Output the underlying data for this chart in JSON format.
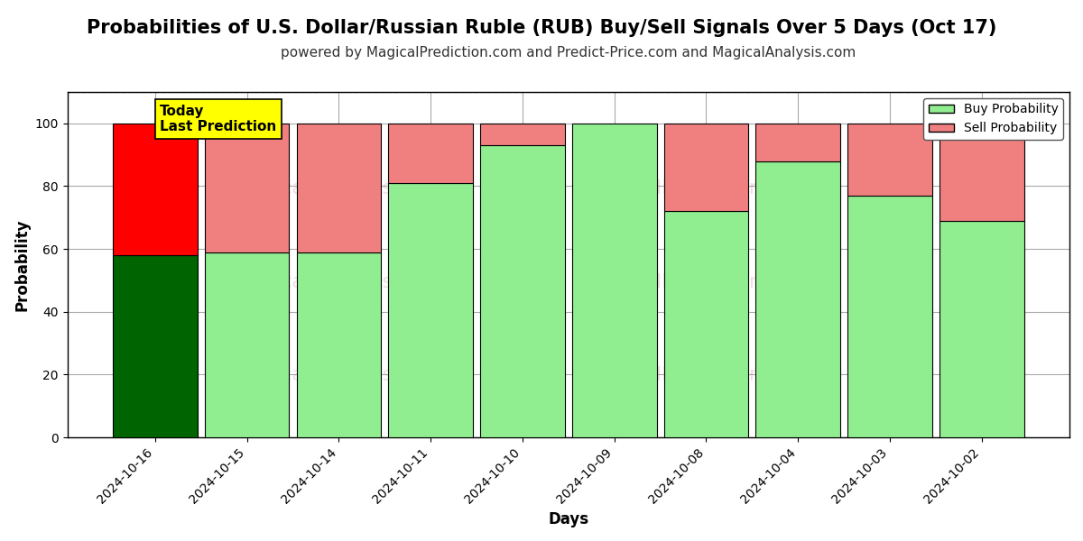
{
  "title": "Probabilities of U.S. Dollar/Russian Ruble (RUB) Buy/Sell Signals Over 5 Days (Oct 17)",
  "subtitle": "powered by MagicalPrediction.com and Predict-Price.com and MagicalAnalysis.com",
  "xlabel": "Days",
  "ylabel": "Probability",
  "categories": [
    "2024-10-16",
    "2024-10-15",
    "2024-10-14",
    "2024-10-11",
    "2024-10-10",
    "2024-10-09",
    "2024-10-08",
    "2024-10-04",
    "2024-10-03",
    "2024-10-02"
  ],
  "buy_values": [
    58,
    59,
    59,
    81,
    93,
    100,
    72,
    88,
    77,
    69
  ],
  "sell_values": [
    42,
    41,
    41,
    19,
    7,
    0,
    28,
    12,
    23,
    31
  ],
  "today_index": 0,
  "buy_color_today": "#006400",
  "sell_color_today": "#ff0000",
  "buy_color_normal": "#90EE90",
  "sell_color_normal": "#F08080",
  "bar_edge_color": "#000000",
  "ylim_max": 110,
  "yticks": [
    0,
    20,
    40,
    60,
    80,
    100
  ],
  "dashed_line_y": 110,
  "legend_buy_label": "Buy Probability",
  "legend_sell_label": "Sell Probability",
  "today_label_line1": "Today",
  "today_label_line2": "Last Prediction",
  "watermark_left": "MagicalAnalysis.com",
  "watermark_right": "MagicalPrediction.com",
  "background_color": "#ffffff",
  "grid_color": "#aaaaaa",
  "title_fontsize": 15,
  "subtitle_fontsize": 11,
  "axis_label_fontsize": 12,
  "tick_fontsize": 10,
  "bar_width": 0.92
}
